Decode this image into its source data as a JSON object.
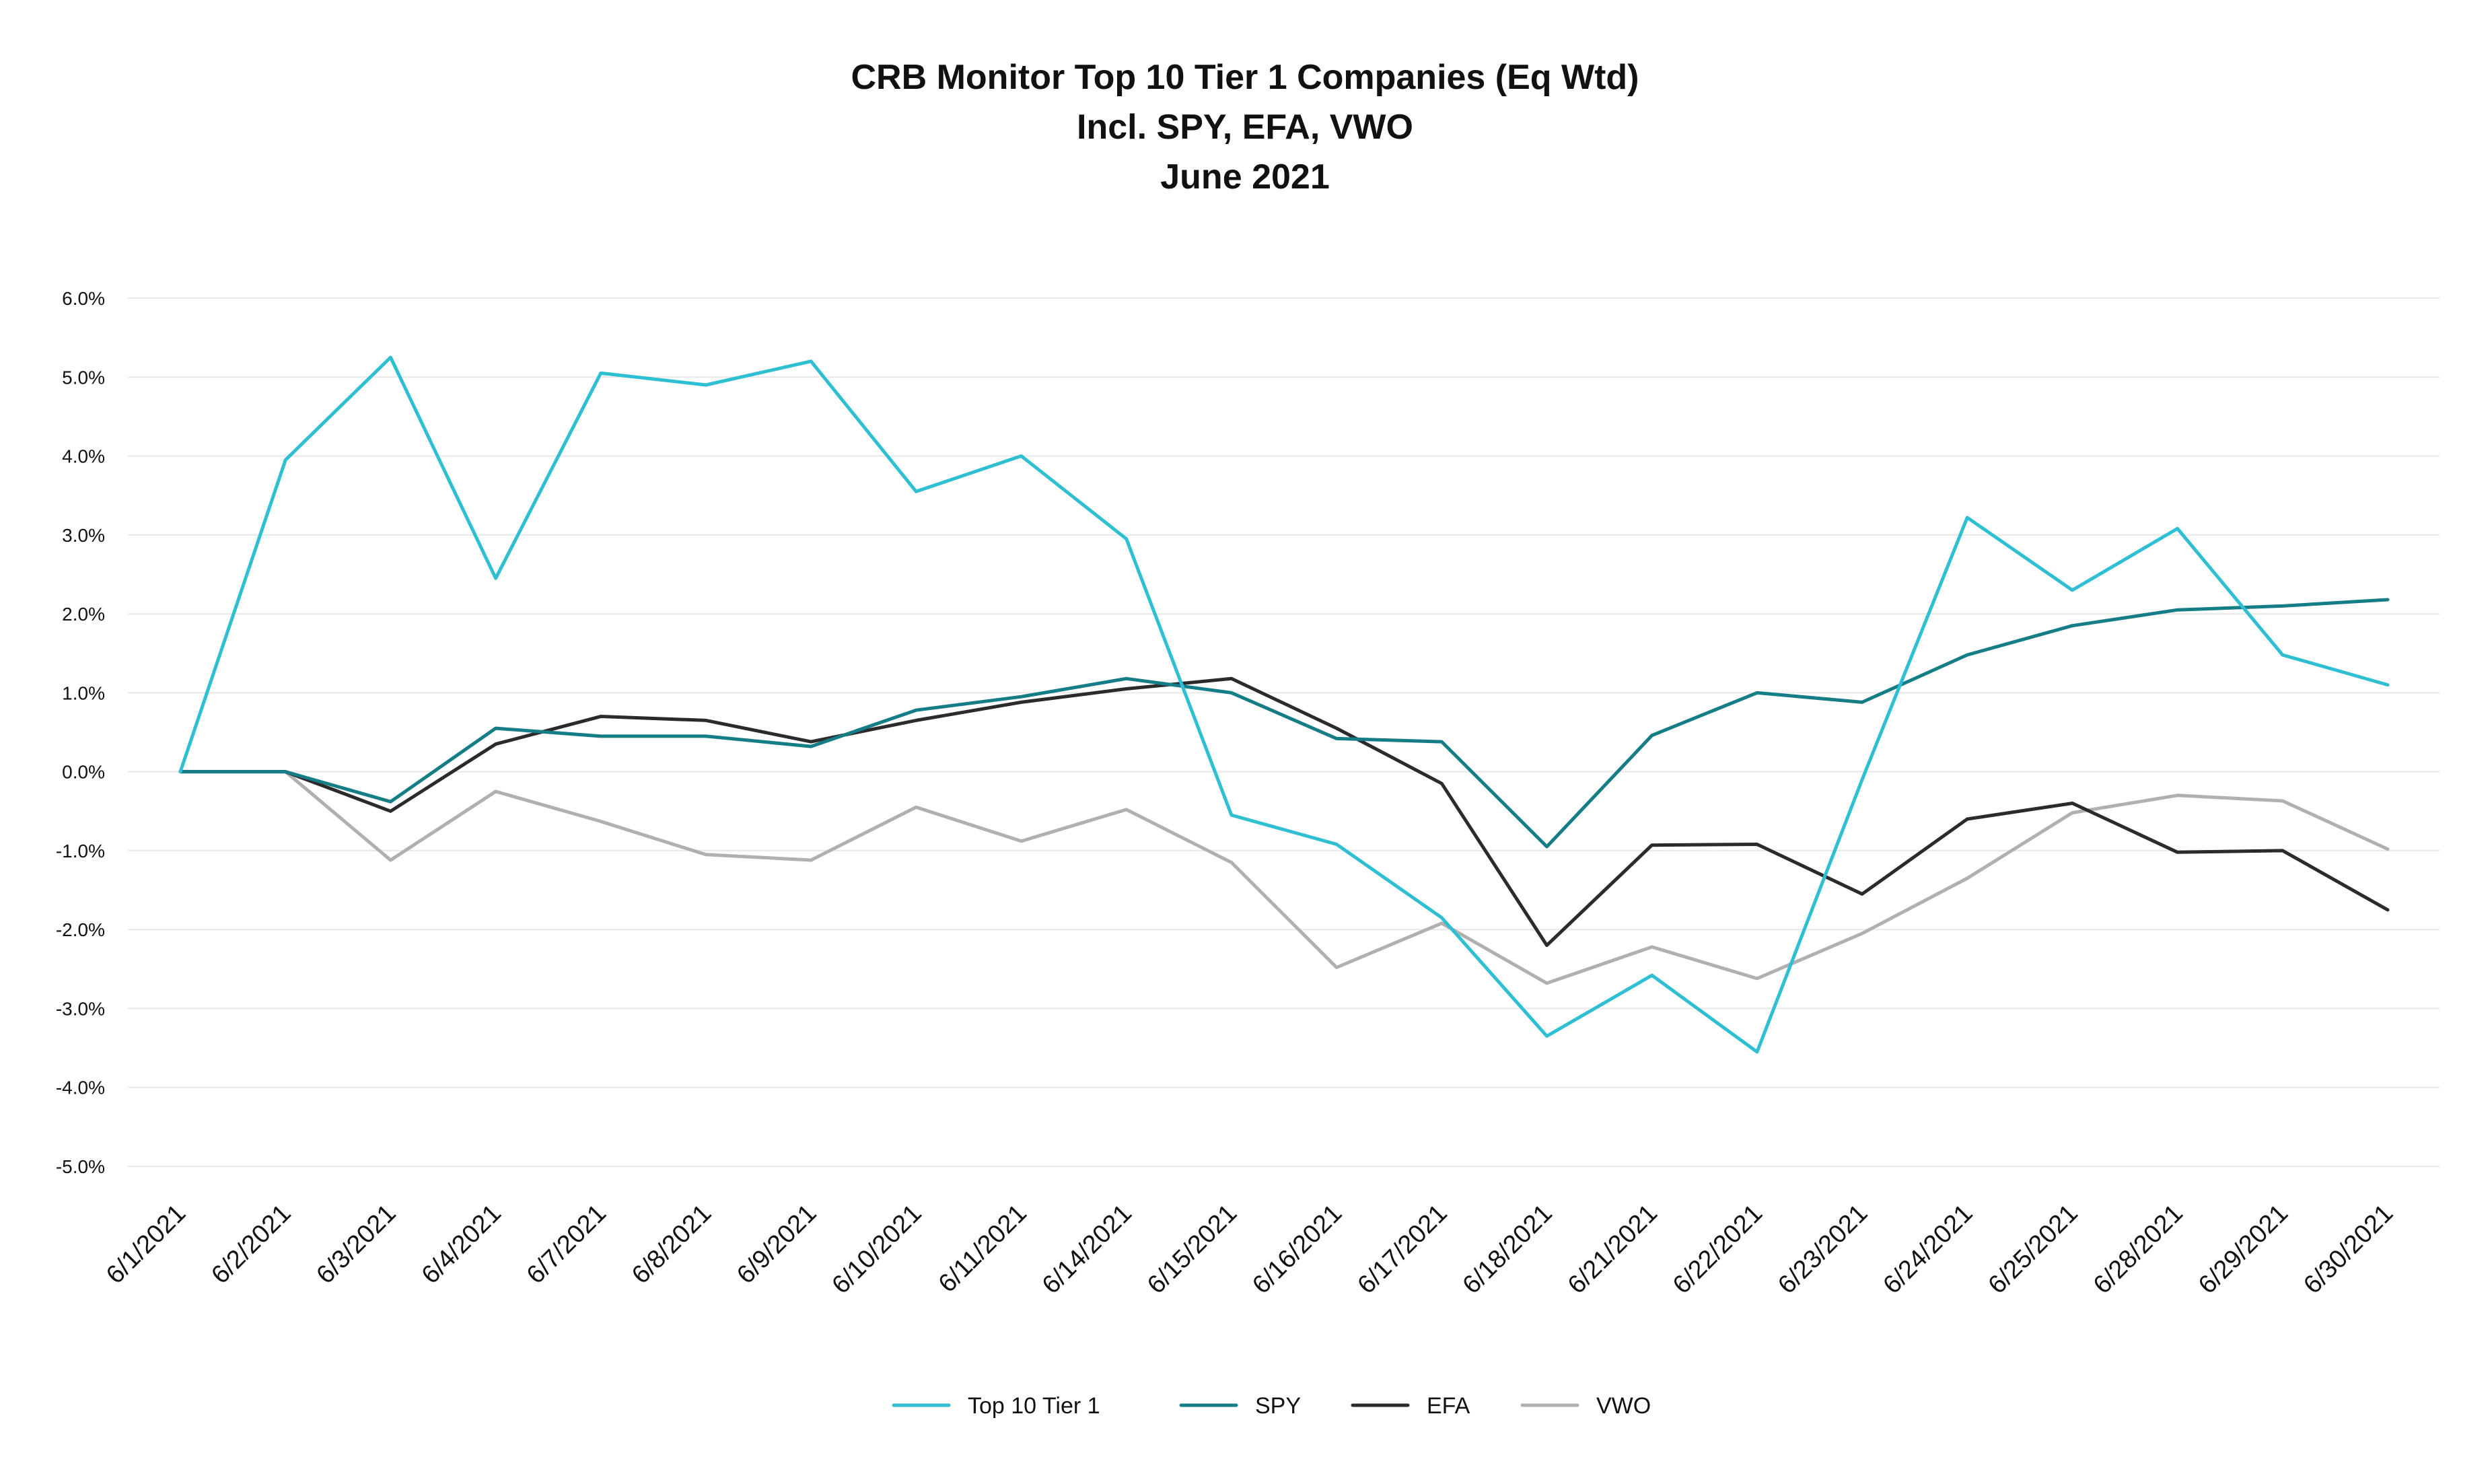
{
  "chart_data": {
    "type": "line",
    "title_lines": [
      "CRB Monitor Top 10 Tier 1 Companies (Eq Wtd)",
      "Incl. SPY, EFA, VWO",
      "June 2021"
    ],
    "xlabel": "",
    "ylabel": "",
    "x": [
      "6/1/2021",
      "6/2/2021",
      "6/3/2021",
      "6/4/2021",
      "6/7/2021",
      "6/8/2021",
      "6/9/2021",
      "6/10/2021",
      "6/11/2021",
      "6/14/2021",
      "6/15/2021",
      "6/16/2021",
      "6/17/2021",
      "6/18/2021",
      "6/21/2021",
      "6/22/2021",
      "6/23/2021",
      "6/24/2021",
      "6/25/2021",
      "6/28/2021",
      "6/29/2021",
      "6/30/2021"
    ],
    "ylim": [
      -5.0,
      6.0
    ],
    "yticks": [
      6.0,
      5.0,
      4.0,
      3.0,
      2.0,
      1.0,
      0.0,
      -1.0,
      -2.0,
      -3.0,
      -4.0,
      -5.0
    ],
    "ytick_labels": [
      "6.0%",
      "5.0%",
      "4.0%",
      "3.0%",
      "2.0%",
      "1.0%",
      "0.0%",
      "-1.0%",
      "-2.0%",
      "-3.0%",
      "-4.0%",
      "-5.0%"
    ],
    "grid": true,
    "legend_position": "bottom",
    "series": [
      {
        "name": "Top 10 Tier 1",
        "color": "#2ebfd2",
        "values": [
          0.0,
          3.95,
          5.25,
          2.45,
          5.05,
          4.9,
          5.2,
          3.55,
          4.0,
          2.95,
          -0.55,
          -0.92,
          -1.85,
          -3.35,
          -2.58,
          -3.55,
          -0.1,
          3.22,
          2.3,
          3.08,
          1.48,
          1.1
        ]
      },
      {
        "name": "SPY",
        "color": "#147d86",
        "values": [
          0.0,
          0.0,
          -0.38,
          0.55,
          0.45,
          0.45,
          0.32,
          0.78,
          0.95,
          1.18,
          1.0,
          0.42,
          0.38,
          -0.95,
          0.46,
          1.0,
          0.88,
          1.48,
          1.85,
          2.05,
          2.1,
          2.18
        ]
      },
      {
        "name": "EFA",
        "color": "#2b2b2e",
        "values": [
          0.0,
          0.0,
          -0.5,
          0.35,
          0.7,
          0.65,
          0.38,
          0.65,
          0.88,
          1.05,
          1.18,
          0.55,
          -0.15,
          -2.2,
          -0.93,
          -0.92,
          -1.55,
          -0.6,
          -0.4,
          -1.02,
          -1.0,
          -1.75
        ]
      },
      {
        "name": "VWO",
        "color": "#b0b0b0",
        "values": [
          0.0,
          0.0,
          -1.12,
          -0.25,
          -0.63,
          -1.05,
          -1.12,
          -0.45,
          -0.88,
          -0.48,
          -1.15,
          -2.48,
          -1.92,
          -2.68,
          -2.22,
          -2.62,
          -2.05,
          -1.35,
          -0.52,
          -0.3,
          -0.37,
          -0.98
        ]
      }
    ]
  }
}
